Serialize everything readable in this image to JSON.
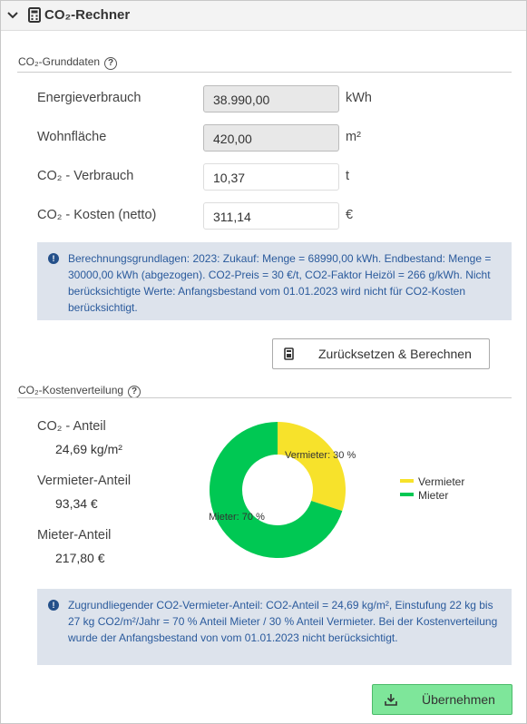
{
  "header": {
    "title": "CO₂-Rechner"
  },
  "basics": {
    "title": "CO₂-Grunddaten",
    "rows": [
      {
        "label": "Energieverbrauch",
        "value": "38.990,00",
        "unit": "kWh"
      },
      {
        "label": "Wohnfläche",
        "value": "420,00",
        "unit": "m²"
      },
      {
        "label": "CO₂ - Verbrauch",
        "value": "10,37",
        "unit": "t"
      },
      {
        "label": "CO₂ - Kosten (netto)",
        "value": "311,14",
        "unit": "€"
      }
    ]
  },
  "info1": "Berechnungsgrundlagen: 2023: Zukauf: Menge = 68990,00 kWh. Endbestand: Menge = 30000,00 kWh (abgezogen). CO2-Preis = 30 €/t, CO2-Faktor Heizöl = 266 g/kWh. Nicht berücksichtigte Werte: Anfangsbestand vom 01.01.2023 wird nicht für CO2-Kosten berücksichtigt.",
  "reset_button": "Zurücksetzen & Berechnen",
  "distribution": {
    "title": "CO₂-Kostenverteilung",
    "items": [
      {
        "label": "CO₂ - Anteil",
        "value": "24,69 kg/m²"
      },
      {
        "label": "Vermieter-Anteil",
        "value": "93,34 €"
      },
      {
        "label": "Mieter-Anteil",
        "value": "217,80 €"
      }
    ]
  },
  "chart": {
    "type": "pie",
    "categories": [
      "Vermieter",
      "Mieter"
    ],
    "values": [
      30,
      70
    ],
    "value_labels": [
      "Vermieter: 30 %",
      "Mieter: 70 %"
    ],
    "colors": [
      "#f7e22b",
      "#00c853"
    ]
  },
  "info2": "Zugrundliegender CO2-Vermieter-Anteil: CO2-Anteil = 24,69 kg/m², Einstufung 22 kg bis 27 kg CO2/m²/Jahr = 70 % Anteil Mieter / 30 % Anteil Vermieter. Bei der Kostenverteilung wurde der Anfangsbestand von vom 01.01.2023 nicht berücksichtigt.",
  "apply_button": "Übernehmen"
}
